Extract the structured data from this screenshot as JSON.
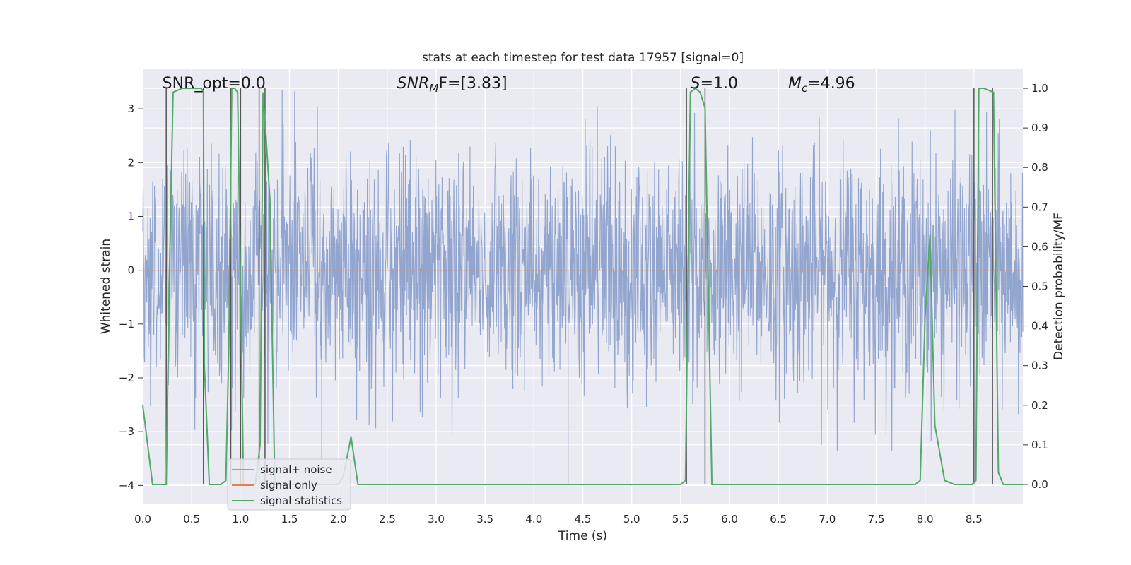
{
  "chart_data": {
    "type": "line",
    "title": "stats at each timestep for test data 17957 [signal=0]",
    "xlabel": "Time (s)",
    "ylabel": "Whitened strain",
    "ylabel_right": "Detection probability/MF",
    "xlim": [
      0,
      9
    ],
    "ylim": [
      -4.35,
      3.75
    ],
    "ylim_right": [
      -0.05,
      1.05
    ],
    "grid": true,
    "legend_position": "bottom-left",
    "x_ticks": [
      "0.0",
      "0.5",
      "1.0",
      "1.5",
      "2.0",
      "2.5",
      "3.0",
      "3.5",
      "4.0",
      "4.5",
      "5.0",
      "5.5",
      "6.0",
      "6.5",
      "7.0",
      "7.5",
      "8.0",
      "8.5"
    ],
    "y_ticks": [
      "3",
      "2",
      "1",
      "0",
      "−1",
      "−2",
      "−3",
      "−4"
    ],
    "y_ticks_right": [
      "1.0",
      "0.9",
      "0.8",
      "0.7",
      "0.6",
      "0.5",
      "0.4",
      "0.3",
      "0.2",
      "0.1",
      "0.0"
    ],
    "annotations": [
      {
        "id": "snr-opt",
        "text": "SNR_opt=0.0",
        "x": 0.2
      },
      {
        "id": "snr-mf",
        "prefix": "SNR",
        "sub": "M",
        "suffix": "F=[3.83]",
        "x": 2.6
      },
      {
        "id": "s-value",
        "prefix": "S",
        "sub": "",
        "suffix": "=1.0",
        "x": 5.6
      },
      {
        "id": "mc-value",
        "prefix": "M",
        "sub": "c",
        "suffix": "=4.96",
        "x": 6.6
      }
    ],
    "series": [
      {
        "name": "signal+ noise",
        "color": "#8da1cc",
        "axis": "left",
        "description_hint": "dense noise, amplitude mostly within ±2.5, peaks near ±3.4",
        "noise_envelope": 2.6,
        "dips": [
          {
            "x": 4.35,
            "y": -4.0
          },
          {
            "x": 1.83,
            "y": -3.5
          }
        ]
      },
      {
        "name": "signal only",
        "color": "#dd8452",
        "axis": "left",
        "x": [
          0,
          9
        ],
        "y": [
          0,
          0
        ]
      },
      {
        "name": "signal statistics",
        "color": "#55a868",
        "axis": "right",
        "x": [
          0.0,
          0.05,
          0.1,
          0.24,
          0.27,
          0.31,
          0.4,
          0.6,
          0.62,
          0.63,
          0.68,
          0.8,
          0.85,
          0.88,
          0.91,
          0.94,
          0.97,
          1.0,
          1.03,
          1.06,
          1.1,
          1.15,
          1.2,
          1.23,
          1.26,
          1.3,
          1.35,
          1.4,
          1.6,
          2.0,
          2.05,
          2.13,
          2.2,
          4.0,
          5.5,
          5.55,
          5.6,
          5.65,
          5.7,
          5.75,
          5.82,
          6.0,
          7.9,
          7.95,
          8.0,
          8.05,
          8.1,
          8.2,
          8.3,
          8.48,
          8.52,
          8.55,
          8.6,
          8.7,
          8.75,
          8.8,
          9.0
        ],
        "y": [
          0.2,
          0.1,
          0.0,
          0.0,
          0.5,
          0.99,
          1.0,
          1.0,
          0.99,
          0.3,
          0.0,
          0.0,
          0.01,
          0.35,
          1.0,
          1.0,
          0.99,
          0.5,
          0.0,
          0.0,
          0.0,
          0.0,
          0.1,
          0.99,
          0.88,
          0.72,
          0.0,
          0.0,
          0.0,
          0.0,
          0.02,
          0.12,
          0.0,
          0.0,
          0.0,
          0.01,
          0.99,
          1.0,
          0.99,
          0.95,
          0.0,
          0.0,
          0.0,
          0.01,
          0.42,
          0.63,
          0.15,
          0.01,
          0.0,
          0.0,
          0.01,
          1.0,
          1.0,
          0.99,
          0.03,
          0.0,
          0.0
        ]
      }
    ],
    "vertical_markers": [
      {
        "x": 0.24,
        "y_top": 1.0,
        "y_bottom": 0.0
      },
      {
        "x": 0.62,
        "y_top": 1.0,
        "y_bottom": 0.0
      },
      {
        "x": 0.9,
        "y_top": 1.0,
        "y_bottom": 0.0
      },
      {
        "x": 1.0,
        "y_top": 1.0,
        "y_bottom": 0.0
      },
      {
        "x": 1.19,
        "y_top": 1.0,
        "y_bottom": 0.0
      },
      {
        "x": 1.25,
        "y_top": 1.0,
        "y_bottom": 0.0
      },
      {
        "x": 5.56,
        "y_top": 1.0,
        "y_bottom": 0.0
      },
      {
        "x": 5.75,
        "y_top": 1.0,
        "y_bottom": 0.0
      },
      {
        "x": 8.5,
        "y_top": 1.0,
        "y_bottom": 0.0
      },
      {
        "x": 8.69,
        "y_top": 1.0,
        "y_bottom": 0.0
      }
    ]
  }
}
